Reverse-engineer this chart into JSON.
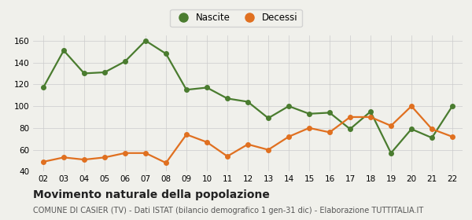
{
  "years": [
    "02",
    "03",
    "04",
    "05",
    "06",
    "07",
    "08",
    "09",
    "10",
    "11",
    "12",
    "13",
    "14",
    "15",
    "16",
    "17",
    "18",
    "19",
    "20",
    "21",
    "22"
  ],
  "nascite": [
    117,
    151,
    130,
    131,
    141,
    160,
    148,
    115,
    117,
    107,
    104,
    89,
    100,
    93,
    94,
    79,
    95,
    57,
    79,
    71,
    100
  ],
  "decessi": [
    49,
    53,
    51,
    53,
    57,
    57,
    48,
    74,
    67,
    54,
    65,
    60,
    72,
    80,
    76,
    90,
    90,
    82,
    100,
    79,
    72
  ],
  "nascite_color": "#4a7c2f",
  "decessi_color": "#e07020",
  "background_color": "#f0f0eb",
  "grid_color": "#cccccc",
  "ylim": [
    40,
    165
  ],
  "yticks": [
    40,
    60,
    80,
    100,
    120,
    140,
    160
  ],
  "title": "Movimento naturale della popolazione",
  "subtitle": "COMUNE DI CASIER (TV) - Dati ISTAT (bilancio demografico 1 gen-31 dic) - Elaborazione TUTTITALIA.IT",
  "legend_nascite": "Nascite",
  "legend_decessi": "Decessi",
  "title_fontsize": 10,
  "subtitle_fontsize": 7,
  "tick_fontsize": 7.5,
  "legend_fontsize": 8.5,
  "marker_size": 4,
  "line_width": 1.6
}
